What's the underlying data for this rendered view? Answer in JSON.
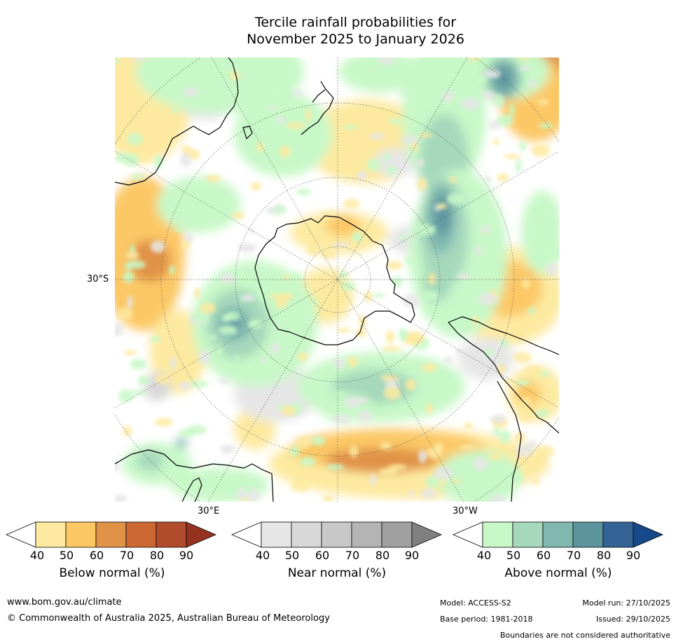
{
  "title_line1": "Tercile rainfall probabilities for",
  "title_line2": "November 2025 to January 2026",
  "map": {
    "projection": "south polar stereographic",
    "lat_label": "30°S",
    "lon_labels": [
      "30°E",
      "30°W"
    ],
    "category_colors": {
      "below": [
        "#fdeaa0",
        "#fcc866",
        "#e09346",
        "#cc6834",
        "#b04c2b",
        "#963220"
      ],
      "near": [
        "#e6e6e6",
        "#d8d8d8",
        "#c8c8c8",
        "#b4b4b4",
        "#a0a0a0",
        "#808080"
      ],
      "above": [
        "#c8f8c8",
        "#a6d8bc",
        "#80b8b0",
        "#5c949e",
        "#346496",
        "#16488a"
      ]
    }
  },
  "colorbars": [
    {
      "title": "Below normal (%)",
      "ticks": [
        "40",
        "50",
        "60",
        "70",
        "80",
        "90"
      ],
      "colors": [
        "#fdeaa0",
        "#fcc866",
        "#e09346",
        "#cc6834",
        "#b04c2b",
        "#963220"
      ]
    },
    {
      "title": "Near normal (%)",
      "ticks": [
        "40",
        "50",
        "60",
        "70",
        "80",
        "90"
      ],
      "colors": [
        "#e6e6e6",
        "#d8d8d8",
        "#c8c8c8",
        "#b4b4b4",
        "#a0a0a0",
        "#808080"
      ]
    },
    {
      "title": "Above normal (%)",
      "ticks": [
        "40",
        "50",
        "60",
        "70",
        "80",
        "90"
      ],
      "colors": [
        "#c8f8c8",
        "#a6d8bc",
        "#80b8b0",
        "#5c949e",
        "#346496",
        "#16488a"
      ]
    }
  ],
  "footer": {
    "website": "www.bom.gov.au/climate",
    "copyright": "© Commonwealth of Australia 2025, Australian Bureau of Meteorology",
    "model": "Model: ACCESS-S2",
    "model_run": "Model run: 27/10/2025",
    "base_period": "Base period: 1981-2018",
    "issued": "Issued: 29/10/2025",
    "disclaimer": "Boundaries are not considered authoritative"
  }
}
